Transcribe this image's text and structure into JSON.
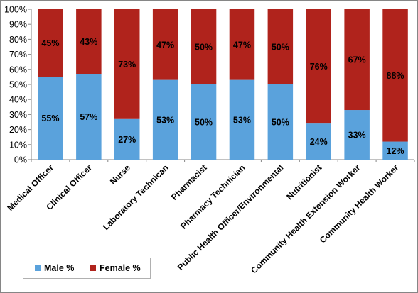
{
  "chart_data": {
    "type": "bar",
    "stacked": true,
    "categories": [
      "Medical Officer",
      "Clinical Officer",
      "Nurse",
      "Laboratory Technican",
      "Pharmacist",
      "Pharmacy Technician",
      "Public Health Officer/Environmental",
      "Nutritionist",
      "Community Health Extension Worker",
      "Community Health Worker"
    ],
    "series": [
      {
        "name": "Male %",
        "color": "#5aa2dc",
        "values": [
          55,
          57,
          27,
          53,
          50,
          53,
          50,
          24,
          33,
          12
        ],
        "labels": [
          "55%",
          "57%",
          "27%",
          "53%",
          "50%",
          "53%",
          "50%",
          "24%",
          "33%",
          "12%"
        ]
      },
      {
        "name": "Female %",
        "color": "#b0231c",
        "values": [
          45,
          43,
          73,
          47,
          50,
          47,
          50,
          76,
          67,
          88
        ],
        "labels": [
          "45%",
          "43%",
          "73%",
          "47%",
          "50%",
          "47%",
          "50%",
          "76%",
          "67%",
          "88%"
        ]
      }
    ],
    "yticks": [
      "0%",
      "10%",
      "20%",
      "30%",
      "40%",
      "50%",
      "60%",
      "70%",
      "80%",
      "90%",
      "100%"
    ],
    "ylim": [
      0,
      100
    ],
    "grid": false,
    "legend": "bottom-left"
  }
}
